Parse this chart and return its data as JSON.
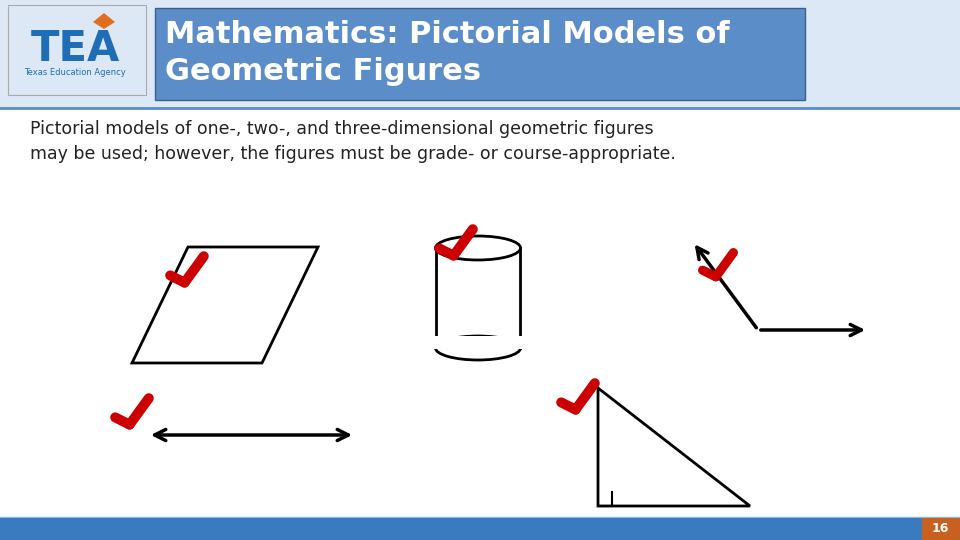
{
  "title": "Mathematics: Pictorial Models of\nGeometric Figures",
  "title_bg": "#5b8dc8",
  "title_color": "white",
  "body_text": "Pictorial models of one-, two-, and three-dimensional geometric figures\nmay be used; however, the figures must be grade- or course-appropriate.",
  "body_text_color": "#222222",
  "background_color": "#f0f4f8",
  "footer_color_left": "#3a7bbf",
  "footer_color_right": "#c86020",
  "page_number": "16",
  "check_color": "#cc0000",
  "figure_color": "#000000",
  "tea_blue": "#1e6db5",
  "tea_orange": "#e07020"
}
